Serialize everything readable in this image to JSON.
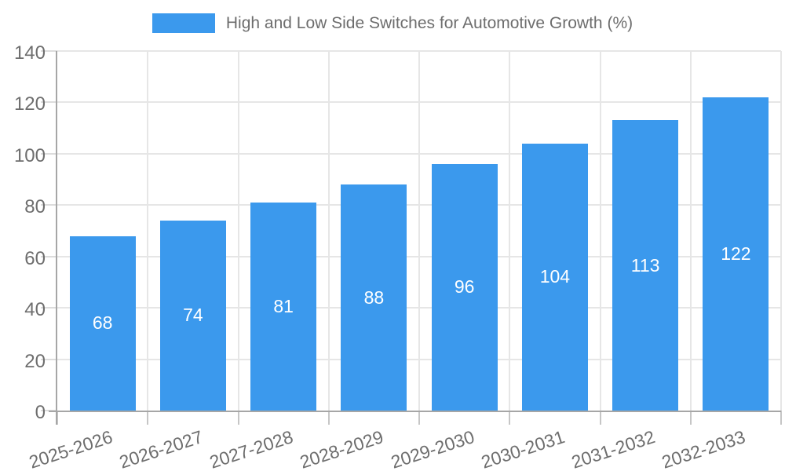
{
  "legend": {
    "label": "High and Low Side Switches for Automotive Growth (%)"
  },
  "colors": {
    "bar": "#3B99ED",
    "grid": "#E6E6E6",
    "axis": "#A6A6A6",
    "tick_y": "#DCDCDC",
    "tick_x": "#C6C6C6",
    "tick_label": "#6E6E6E",
    "value_label": "#FFFFFF",
    "background": "#FFFFFF",
    "legend_text": "#6D6D6D"
  },
  "chart_data": {
    "type": "bar",
    "title": "High and Low Side Switches for Automotive Growth (%)",
    "categories": [
      "2025-2026",
      "2026-2027",
      "2027-2028",
      "2028-2029",
      "2029-2030",
      "2030-2031",
      "2031-2032",
      "2032-2033"
    ],
    "values": [
      68,
      74,
      81,
      88,
      96,
      104,
      113,
      122
    ],
    "series_name": "High and Low Side Switches for Automotive Growth (%)",
    "xlabel": "",
    "ylabel": "",
    "ylim": [
      0,
      140
    ],
    "ytick_step": 20,
    "yticks": [
      0,
      20,
      40,
      60,
      80,
      100,
      120,
      140
    ],
    "grid": true,
    "legend_position": "top-center",
    "value_labels": "inside-center",
    "xtick_rotation_deg": -18
  }
}
